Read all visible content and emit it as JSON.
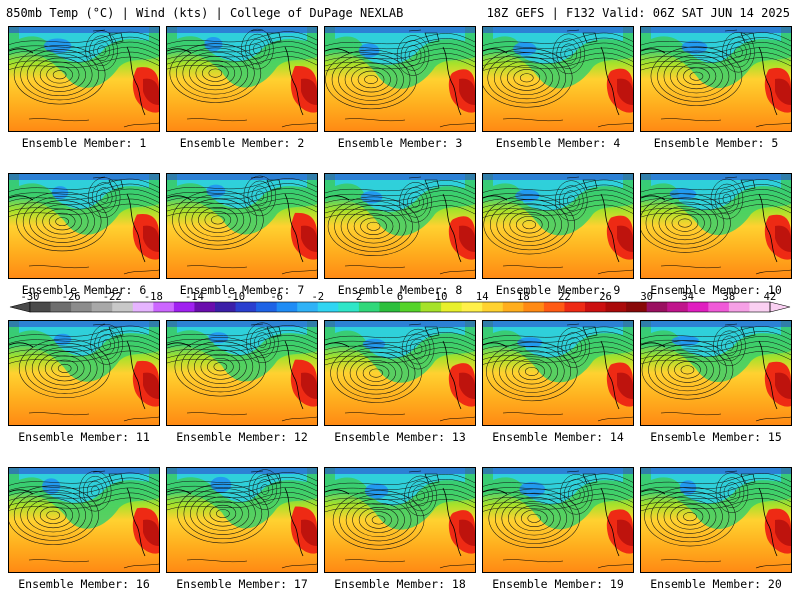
{
  "header": {
    "title": "850mb Temp (°C) | Wind (kts) | College of DuPage NEXLAB",
    "run_info": "18Z GEFS | F132 Valid: 06Z SAT JUN 14 2025"
  },
  "members": [
    "Ensemble Member: 1",
    "Ensemble Member: 2",
    "Ensemble Member: 3",
    "Ensemble Member: 4",
    "Ensemble Member: 5",
    "Ensemble Member: 6",
    "Ensemble Member: 7",
    "Ensemble Member: 8",
    "Ensemble Member: 9",
    "Ensemble Member: 10",
    "Ensemble Member: 11",
    "Ensemble Member: 12",
    "Ensemble Member: 13",
    "Ensemble Member: 14",
    "Ensemble Member: 15",
    "Ensemble Member: 16",
    "Ensemble Member: 17",
    "Ensemble Member: 18",
    "Ensemble Member: 19",
    "Ensemble Member: 20"
  ],
  "colorbar": {
    "labels": [
      "-30",
      "-26",
      "-22",
      "-18",
      "-14",
      "-10",
      "-6",
      "-2",
      "2",
      "6",
      "10",
      "14",
      "18",
      "22",
      "26",
      "30",
      "34",
      "38",
      "42"
    ],
    "colors": [
      "#4a4a4a",
      "#6e6e6e",
      "#8c8c8c",
      "#a8a8a8",
      "#c8c8c8",
      "#e6b4ff",
      "#cc66ff",
      "#a020f0",
      "#6a0dad",
      "#3b1fa8",
      "#2a3fcf",
      "#1e63e6",
      "#1f8cf5",
      "#2fb2f7",
      "#30d5f2",
      "#2fe6c8",
      "#30d87a",
      "#2cbf3c",
      "#55d42a",
      "#a6e22a",
      "#e8f02c",
      "#fff04a",
      "#ffd230",
      "#ffae1e",
      "#ff8a14",
      "#ff5a14",
      "#ee2a14",
      "#cc1010",
      "#aa0a0a",
      "#880808",
      "#9a1060",
      "#c0148c",
      "#e01ec0",
      "#f05ad8",
      "#f6a0e6",
      "#fad0f2"
    ]
  }
}
